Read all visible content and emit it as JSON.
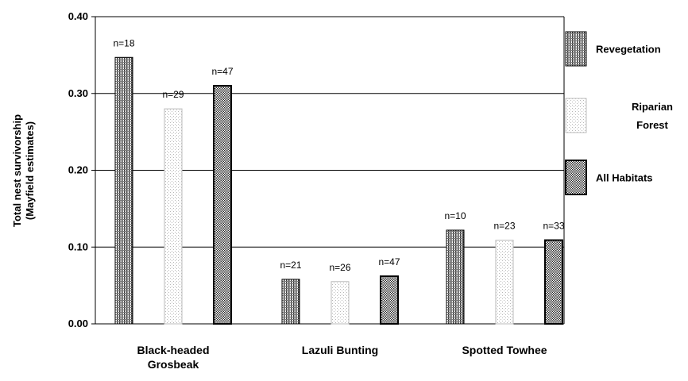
{
  "chart_data": {
    "type": "bar",
    "title": "",
    "ylabel_lines": [
      "Total nest survivorship",
      "(Mayfield estimates)"
    ],
    "xlabel": "",
    "ylim": [
      0,
      0.4
    ],
    "yticks": [
      "0.00",
      "0.10",
      "0.20",
      "0.30",
      "0.40"
    ],
    "grid": "horizontal",
    "legend_position": "right",
    "categories": [
      {
        "lines": [
          "Black-headed",
          "Grosbeak"
        ]
      },
      {
        "lines": [
          "Lazuli Bunting"
        ]
      },
      {
        "lines": [
          "Spotted Towhee"
        ]
      }
    ],
    "series": [
      {
        "name_lines": [
          "Revegetation"
        ],
        "pattern": "vertical-hatch",
        "border": "#000000",
        "values": [
          0.347,
          0.058,
          0.122
        ],
        "n_labels": [
          "n=18",
          "n=21",
          "n=10"
        ]
      },
      {
        "name_lines": [
          "Riparian",
          "Forest"
        ],
        "pattern": "light-dots",
        "border": "#bbbbbb",
        "values": [
          0.28,
          0.055,
          0.109
        ],
        "n_labels": [
          "n=29",
          "n=26",
          "n=23"
        ]
      },
      {
        "name_lines": [
          "All Habitats"
        ],
        "pattern": "dense-dots",
        "border": "#000000",
        "values": [
          0.31,
          0.062,
          0.109
        ],
        "n_labels": [
          "n=47",
          "n=47",
          "n=33"
        ]
      }
    ]
  }
}
